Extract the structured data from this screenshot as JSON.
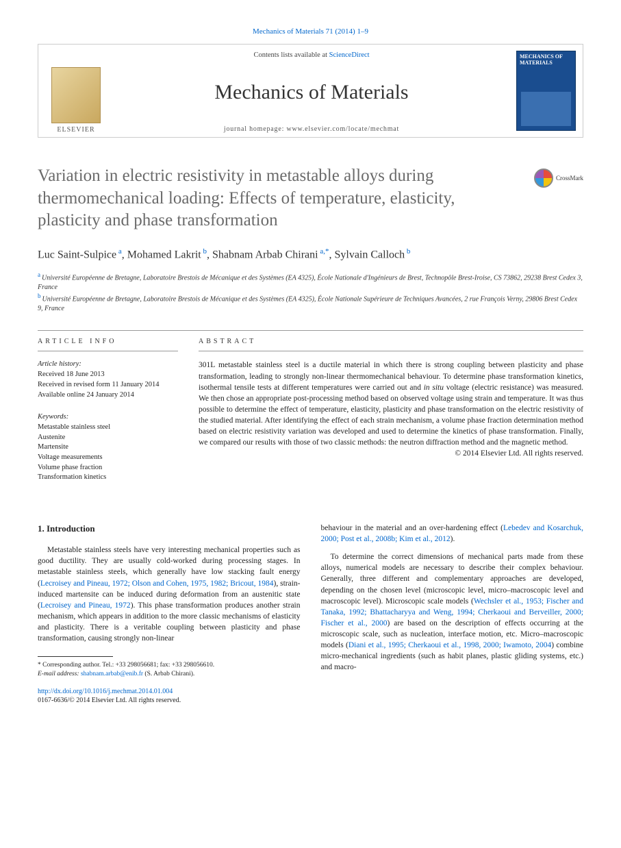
{
  "citation": "Mechanics of Materials 71 (2014) 1–9",
  "masthead": {
    "publisher": "ELSEVIER",
    "contents_prefix": "Contents lists available at ",
    "contents_link": "ScienceDirect",
    "journal": "Mechanics of Materials",
    "homepage_prefix": "journal homepage: ",
    "homepage_url": "www.elsevier.com/locate/mechmat",
    "cover_title": "MECHANICS OF MATERIALS"
  },
  "title": "Variation in electric resistivity in metastable alloys during thermomechanical loading: Effects of temperature, elasticity, plasticity and phase transformation",
  "crossmark": "CrossMark",
  "authors_html": "Luc Saint-Sulpice|a|, Mohamed Lakrit|b|, Shabnam Arbab Chirani|a,*|, Sylvain Calloch|b|",
  "authors": [
    {
      "name": "Luc Saint-Sulpice",
      "sup": "a"
    },
    {
      "name": "Mohamed Lakrit",
      "sup": "b"
    },
    {
      "name": "Shabnam Arbab Chirani",
      "sup": "a,*"
    },
    {
      "name": "Sylvain Calloch",
      "sup": "b"
    }
  ],
  "affiliations": [
    {
      "sup": "a",
      "text": "Université Européenne de Bretagne, Laboratoire Brestois de Mécanique et des Systèmes (EA 4325), École Nationale d'Ingénieurs de Brest, Technopôle Brest-Iroise, CS 73862, 29238 Brest Cedex 3, France"
    },
    {
      "sup": "b",
      "text": "Université Européenne de Bretagne, Laboratoire Brestois de Mécanique et des Systèmes (EA 4325), École Nationale Supérieure de Techniques Avancées, 2 rue François Verny, 29806 Brest Cedex 9, France"
    }
  ],
  "info_label": "ARTICLE INFO",
  "abstract_label": "ABSTRACT",
  "history_label": "Article history:",
  "history": [
    "Received 18 June 2013",
    "Received in revised form 11 January 2014",
    "Available online 24 January 2014"
  ],
  "keywords_label": "Keywords:",
  "keywords": [
    "Metastable stainless steel",
    "Austenite",
    "Martensite",
    "Voltage measurements",
    "Volume phase fraction",
    "Transformation kinetics"
  ],
  "abstract": "301L metastable stainless steel is a ductile material in which there is strong coupling between plasticity and phase transformation, leading to strongly non-linear thermomechanical behaviour. To determine phase transformation kinetics, isothermal tensile tests at different temperatures were carried out and in situ voltage (electric resistance) was measured. We then chose an appropriate post-processing method based on observed voltage using strain and temperature. It was thus possible to determine the effect of temperature, elasticity, plasticity and phase transformation on the electric resistivity of the studied material. After identifying the effect of each strain mechanism, a volume phase fraction determination method based on electric resistivity variation was developed and used to determine the kinetics of phase transformation. Finally, we compared our results with those of two classic methods: the neutron diffraction method and the magnetic method.",
  "copyright": "© 2014 Elsevier Ltd. All rights reserved.",
  "section1": "1. Introduction",
  "para1a": "Metastable stainless steels have very interesting mechanical properties such as good ductility. They are usually cold-worked during processing stages. In metastable stainless steels, which generally have low stacking fault energy (",
  "cite1": "Lecroisey and Pineau, 1972; Olson and Cohen, 1975, 1982; Bricout, 1984",
  "para1b": "), strain-induced martensite can be induced during deformation from an austenitic state (",
  "cite2": "Lecroisey and Pineau, 1972",
  "para1c": "). This phase transformation produces another strain mechanism, which appears in addition to the more classic mechanisms of elasticity and plasticity. There is a veritable coupling between plasticity and phase transformation, causing strongly non-linear",
  "para2a": "behaviour in the material and an over-hardening effect (",
  "cite3": "Lebedev and Kosarchuk, 2000; Post et al., 2008b; Kim et al., 2012",
  "para2b": ").",
  "para3a": "To determine the correct dimensions of mechanical parts made from these alloys, numerical models are necessary to describe their complex behaviour. Generally, three different and complementary approaches are developed, depending on the chosen level (microscopic level, micro–macroscopic level and macroscopic level). Microscopic scale models (",
  "cite4": "Wechsler et al., 1953; Fischer and Tanaka, 1992; Bhattacharyya and Weng, 1994; Cherkaoui and Berveiller, 2000; Fischer et al., 2000",
  "para3b": ") are based on the description of effects occurring at the microscopic scale, such as nucleation, interface motion, etc. Micro–macroscopic models (",
  "cite5": "Diani et al., 1995; Cherkaoui et al., 1998, 2000; Iwamoto, 2004",
  "para3c": ") combine micro-mechanical ingredients (such as habit planes, plastic gliding systems, etc.) and macro-",
  "corresponding": "Corresponding author. Tel.: +33 298056681; fax: +33 298056610.",
  "email_label": "E-mail address:",
  "email": "shabnam.arbab@enib.fr",
  "email_suffix": "(S. Arbab Chirani).",
  "doi": "http://dx.doi.org/10.1016/j.mechmat.2014.01.004",
  "issn_line": "0167-6636/© 2014 Elsevier Ltd. All rights reserved."
}
